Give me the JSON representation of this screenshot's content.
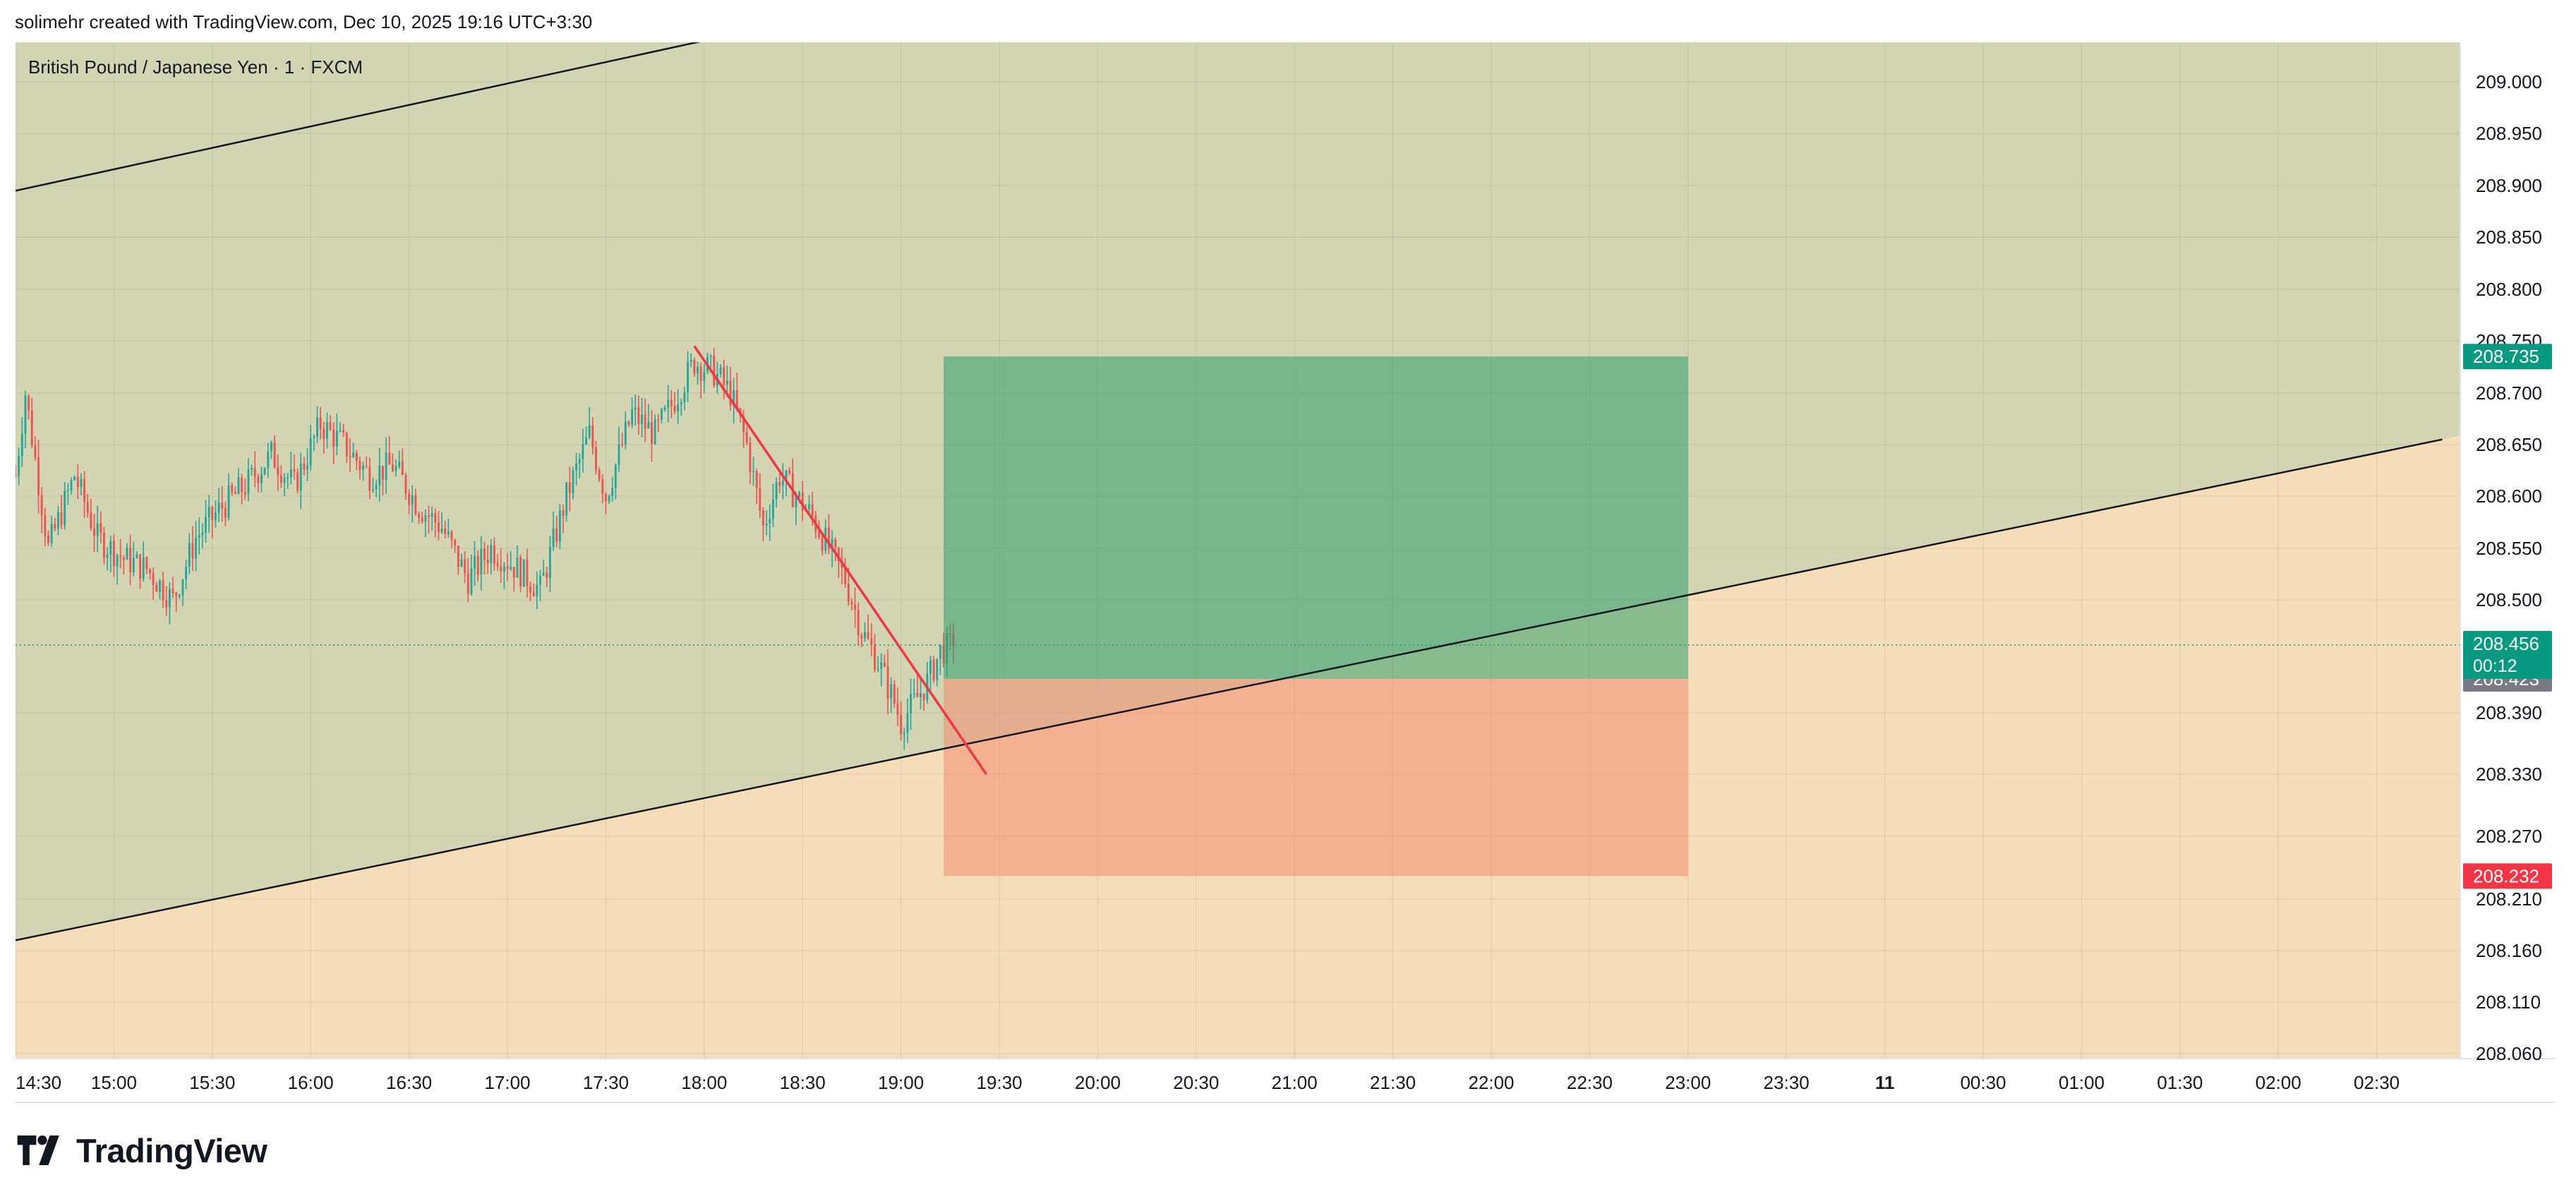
{
  "header": {
    "attribution": "solimehr created with TradingView.com, Dec 10, 2025 19:16 UTC+3:30"
  },
  "branding": {
    "logo_text": "TradingView",
    "logo_icon": "tradingview-logo-icon"
  },
  "colors": {
    "up_candle": "#26a69a",
    "down_candle": "#ef5350",
    "profit_zone": "#2e9e6b",
    "loss_zone": "#f4866a",
    "channel_fill": "#d3d4b2",
    "below_channel_fill": "#f5ddb9",
    "trendline": "#f23645",
    "channel_line": "#131722",
    "target_label": "#089981",
    "stop_label": "#f23645",
    "current_price_label": "#089981",
    "entry_label": "#787b86"
  },
  "chart_data": {
    "type": "candlestick",
    "title": "British Pound / Japanese Yen · 1 · FXCM",
    "symbol": "British Pound / Japanese Yen",
    "interval": "1",
    "source": "FXCM",
    "y_axis": {
      "ticks": [
        "209.000",
        "208.950",
        "208.900",
        "208.850",
        "208.800",
        "208.750",
        "208.700",
        "208.650",
        "208.600",
        "208.550",
        "208.500",
        "208.390",
        "208.330",
        "208.270",
        "208.210",
        "208.160",
        "208.110",
        "208.060"
      ]
    },
    "x_axis": {
      "ticks": [
        "14:30",
        "15:00",
        "15:30",
        "16:00",
        "16:30",
        "17:00",
        "17:30",
        "18:00",
        "18:30",
        "19:00",
        "19:30",
        "20:00",
        "20:30",
        "21:00",
        "21:30",
        "22:00",
        "22:30",
        "23:00",
        "23:30",
        "11",
        "00:30",
        "01:00",
        "01:30",
        "02:00",
        "02:30"
      ],
      "bold_ticks": [
        "11"
      ]
    },
    "price_path": [
      {
        "t": "14:30",
        "p": 208.62
      },
      {
        "t": "14:33",
        "p": 208.7
      },
      {
        "t": "14:40",
        "p": 208.55
      },
      {
        "t": "14:48",
        "p": 208.62
      },
      {
        "t": "14:55",
        "p": 208.56
      },
      {
        "t": "15:03",
        "p": 208.54
      },
      {
        "t": "15:10",
        "p": 208.53
      },
      {
        "t": "15:18",
        "p": 208.5
      },
      {
        "t": "15:25",
        "p": 208.56
      },
      {
        "t": "15:33",
        "p": 208.59
      },
      {
        "t": "15:40",
        "p": 208.61
      },
      {
        "t": "15:48",
        "p": 208.64
      },
      {
        "t": "15:55",
        "p": 208.61
      },
      {
        "t": "16:03",
        "p": 208.67
      },
      {
        "t": "16:10",
        "p": 208.65
      },
      {
        "t": "16:18",
        "p": 208.62
      },
      {
        "t": "16:25",
        "p": 208.63
      },
      {
        "t": "16:33",
        "p": 208.59
      },
      {
        "t": "16:40",
        "p": 208.57
      },
      {
        "t": "16:48",
        "p": 208.52
      },
      {
        "t": "16:55",
        "p": 208.55
      },
      {
        "t": "17:03",
        "p": 208.53
      },
      {
        "t": "17:10",
        "p": 208.51
      },
      {
        "t": "17:18",
        "p": 208.6
      },
      {
        "t": "17:25",
        "p": 208.66
      },
      {
        "t": "17:30",
        "p": 208.6
      },
      {
        "t": "17:38",
        "p": 208.68
      },
      {
        "t": "17:45",
        "p": 208.66
      },
      {
        "t": "17:52",
        "p": 208.7
      },
      {
        "t": "17:57",
        "p": 208.73
      },
      {
        "t": "18:03",
        "p": 208.72
      },
      {
        "t": "18:08",
        "p": 208.7
      },
      {
        "t": "18:13",
        "p": 208.65
      },
      {
        "t": "18:18",
        "p": 208.57
      },
      {
        "t": "18:23",
        "p": 208.62
      },
      {
        "t": "18:28",
        "p": 208.6
      },
      {
        "t": "18:33",
        "p": 208.58
      },
      {
        "t": "18:38",
        "p": 208.55
      },
      {
        "t": "18:43",
        "p": 208.52
      },
      {
        "t": "18:48",
        "p": 208.47
      },
      {
        "t": "18:53",
        "p": 208.44
      },
      {
        "t": "18:58",
        "p": 208.4
      },
      {
        "t": "19:00",
        "p": 208.38
      },
      {
        "t": "19:04",
        "p": 208.4
      },
      {
        "t": "19:08",
        "p": 208.42
      },
      {
        "t": "19:12",
        "p": 208.45
      },
      {
        "t": "19:16",
        "p": 208.456
      }
    ],
    "current_price": {
      "value": "208.456",
      "countdown": "00:12"
    },
    "long_position": {
      "entry": "208.423",
      "target": "208.735",
      "stop": "208.232",
      "start": "19:13",
      "end": "23:00"
    },
    "trendline": [
      {
        "t": "17:57",
        "p": 208.745
      },
      {
        "t": "19:26",
        "p": 208.33
      }
    ],
    "channel_upper": [
      {
        "t": "14:30",
        "p": 208.895
      },
      {
        "t": "18:00",
        "p": 209.04
      }
    ],
    "channel_lower": [
      {
        "t": "14:30",
        "p": 208.17
      },
      {
        "t": "02:50",
        "p": 208.655
      }
    ]
  }
}
